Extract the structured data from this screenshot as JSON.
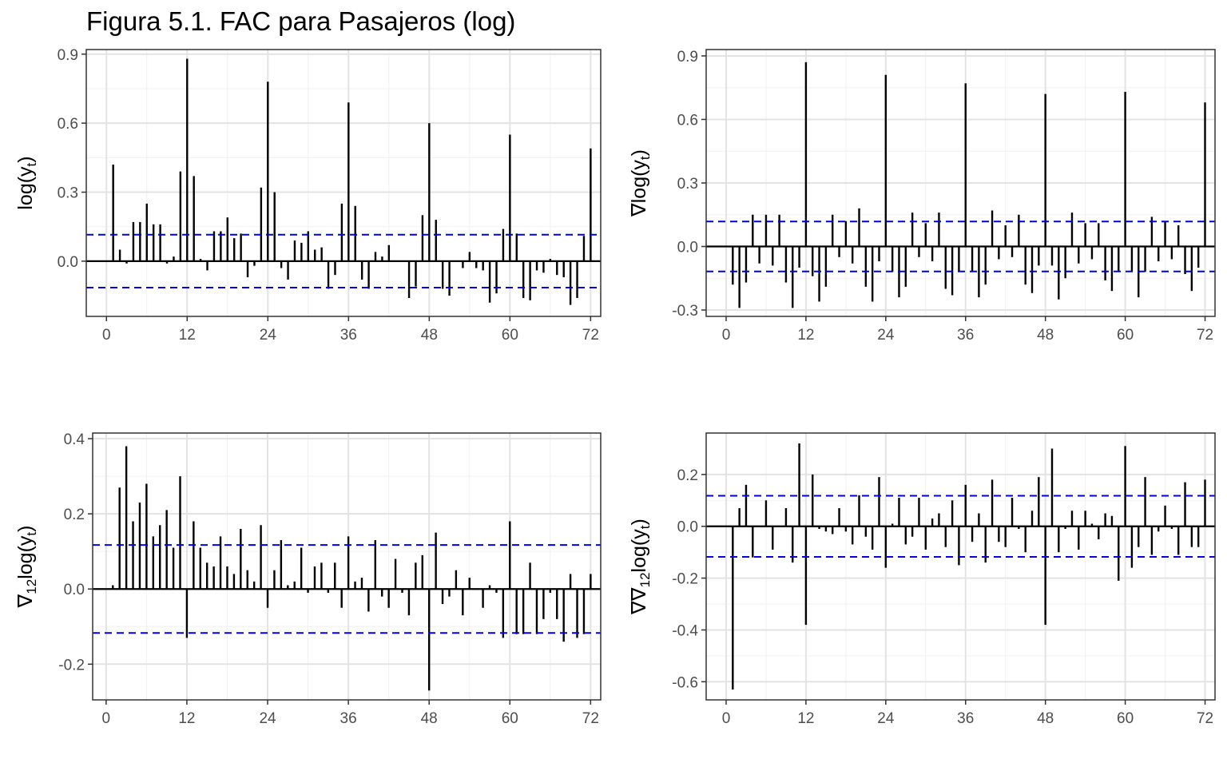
{
  "figure": {
    "title": "Figura 5.1. FAC para Pasajeros (log)"
  },
  "chart_data": [
    {
      "type": "bar",
      "ylabel": "log(y_t)",
      "ylabel_parts": [
        "log(y",
        "t",
        ")"
      ],
      "xlim": [
        -3,
        73.5
      ],
      "ylim": [
        -0.24,
        0.92
      ],
      "xticks": [
        0,
        12,
        24,
        36,
        48,
        60,
        72
      ],
      "yticks": [
        -0.0,
        0.3,
        0.6,
        0.9
      ],
      "ytick_labels": [
        "0.0",
        "0.3",
        "0.6",
        "0.9"
      ],
      "conf_limit": 0.115,
      "x": [
        1,
        2,
        3,
        4,
        5,
        6,
        7,
        8,
        9,
        10,
        11,
        12,
        13,
        14,
        15,
        16,
        17,
        18,
        19,
        20,
        21,
        22,
        23,
        24,
        25,
        26,
        27,
        28,
        29,
        30,
        31,
        32,
        33,
        34,
        35,
        36,
        37,
        38,
        39,
        40,
        41,
        42,
        43,
        44,
        45,
        46,
        47,
        48,
        49,
        50,
        51,
        52,
        53,
        54,
        55,
        56,
        57,
        58,
        59,
        60,
        61,
        62,
        63,
        64,
        65,
        66,
        67,
        68,
        69,
        70,
        71,
        72
      ],
      "values": [
        0.42,
        0.05,
        -0.01,
        0.17,
        0.17,
        0.25,
        0.16,
        0.16,
        -0.01,
        0.02,
        0.39,
        0.88,
        0.37,
        0.01,
        -0.04,
        0.13,
        0.13,
        0.19,
        0.1,
        0.12,
        -0.07,
        -0.02,
        0.32,
        0.78,
        0.3,
        -0.03,
        -0.08,
        0.09,
        0.08,
        0.13,
        0.05,
        0.06,
        -0.12,
        -0.06,
        0.25,
        0.69,
        0.24,
        -0.08,
        -0.12,
        0.04,
        0.02,
        0.07,
        0.0,
        0.0,
        -0.16,
        -0.11,
        0.2,
        0.6,
        0.18,
        -0.12,
        -0.15,
        0.0,
        -0.03,
        0.04,
        -0.03,
        -0.04,
        -0.18,
        -0.14,
        0.14,
        0.55,
        0.12,
        -0.16,
        -0.17,
        -0.04,
        -0.05,
        0.01,
        -0.06,
        -0.07,
        -0.19,
        -0.16,
        0.11,
        0.49
      ]
    },
    {
      "type": "bar",
      "ylabel": "∇log(y_t)",
      "ylabel_parts": [
        "∇log(y",
        "t",
        ")"
      ],
      "xlim": [
        -3,
        73.5
      ],
      "ylim": [
        -0.33,
        0.93
      ],
      "xticks": [
        0,
        12,
        24,
        36,
        48,
        60,
        72
      ],
      "yticks": [
        -0.3,
        0.0,
        0.3,
        0.6,
        0.9
      ],
      "ytick_labels": [
        "-0.3",
        "0.0",
        "0.3",
        "0.6",
        "0.9"
      ],
      "conf_limit": 0.118,
      "x": [
        1,
        2,
        3,
        4,
        5,
        6,
        7,
        8,
        9,
        10,
        11,
        12,
        13,
        14,
        15,
        16,
        17,
        18,
        19,
        20,
        21,
        22,
        23,
        24,
        25,
        26,
        27,
        28,
        29,
        30,
        31,
        32,
        33,
        34,
        35,
        36,
        37,
        38,
        39,
        40,
        41,
        42,
        43,
        44,
        45,
        46,
        47,
        48,
        49,
        50,
        51,
        52,
        53,
        54,
        55,
        56,
        57,
        58,
        59,
        60,
        61,
        62,
        63,
        64,
        65,
        66,
        67,
        68,
        69,
        70,
        71,
        72
      ],
      "values": [
        -0.18,
        -0.29,
        -0.17,
        0.15,
        -0.08,
        0.15,
        -0.09,
        0.15,
        -0.17,
        -0.29,
        -0.1,
        0.87,
        -0.14,
        -0.26,
        -0.19,
        0.15,
        -0.05,
        0.12,
        -0.08,
        0.18,
        -0.19,
        -0.26,
        -0.07,
        0.81,
        -0.12,
        -0.24,
        -0.19,
        0.16,
        -0.05,
        0.11,
        -0.07,
        0.16,
        -0.2,
        -0.23,
        -0.12,
        0.77,
        -0.12,
        -0.24,
        -0.18,
        0.17,
        -0.06,
        0.1,
        -0.05,
        0.15,
        -0.18,
        -0.22,
        -0.09,
        0.72,
        -0.09,
        -0.25,
        -0.15,
        0.16,
        -0.08,
        0.11,
        -0.06,
        0.11,
        -0.16,
        -0.21,
        -0.12,
        0.73,
        -0.12,
        -0.24,
        -0.12,
        0.14,
        -0.07,
        0.12,
        -0.06,
        0.1,
        -0.13,
        -0.21,
        -0.1,
        0.68
      ]
    },
    {
      "type": "bar",
      "ylabel": "∇12log(y_t)",
      "ylabel_parts": [
        "∇",
        "12",
        "log(y",
        "t",
        ")"
      ],
      "xlim": [
        -2,
        73.5
      ],
      "ylim": [
        -0.295,
        0.415
      ],
      "xticks": [
        0,
        12,
        24,
        36,
        48,
        60,
        72
      ],
      "yticks": [
        -0.2,
        0.0,
        0.2,
        0.4
      ],
      "ytick_labels": [
        "-0.2",
        "0.0",
        "0.2",
        "0.4"
      ],
      "conf_limit": 0.117,
      "x": [
        1,
        2,
        3,
        4,
        5,
        6,
        7,
        8,
        9,
        10,
        11,
        12,
        13,
        14,
        15,
        16,
        17,
        18,
        19,
        20,
        21,
        22,
        23,
        24,
        25,
        26,
        27,
        28,
        29,
        30,
        31,
        32,
        33,
        34,
        35,
        36,
        37,
        38,
        39,
        40,
        41,
        42,
        43,
        44,
        45,
        46,
        47,
        48,
        49,
        50,
        51,
        52,
        53,
        54,
        55,
        56,
        57,
        58,
        59,
        60,
        61,
        62,
        63,
        64,
        65,
        66,
        67,
        68,
        69,
        70,
        71,
        72
      ],
      "values": [
        0.01,
        0.27,
        0.38,
        0.18,
        0.23,
        0.28,
        0.14,
        0.17,
        0.21,
        0.11,
        0.3,
        -0.13,
        0.18,
        0.11,
        0.07,
        0.06,
        0.14,
        0.06,
        0.04,
        0.16,
        0.05,
        0.02,
        0.17,
        -0.05,
        0.05,
        0.13,
        0.01,
        0.02,
        0.11,
        -0.01,
        0.06,
        0.07,
        -0.01,
        0.07,
        -0.05,
        0.14,
        0.02,
        0.03,
        -0.06,
        0.13,
        -0.02,
        -0.05,
        0.08,
        -0.01,
        -0.07,
        0.07,
        0.09,
        -0.27,
        0.15,
        -0.04,
        -0.02,
        0.05,
        -0.07,
        0.03,
        0.0,
        -0.05,
        0.01,
        -0.01,
        -0.13,
        0.18,
        -0.12,
        -0.12,
        0.07,
        -0.12,
        -0.08,
        -0.01,
        -0.08,
        -0.14,
        0.04,
        -0.13,
        -0.12,
        0.04
      ]
    },
    {
      "type": "bar",
      "ylabel": "∇∇12log(y_t)",
      "ylabel_parts": [
        "∇∇",
        "12",
        "log(y",
        "t",
        ")"
      ],
      "xlim": [
        -3,
        73.5
      ],
      "ylim": [
        -0.67,
        0.36
      ],
      "xticks": [
        0,
        12,
        24,
        36,
        48,
        60,
        72
      ],
      "yticks": [
        -0.6,
        -0.4,
        -0.2,
        0.0,
        0.2
      ],
      "ytick_labels": [
        "-0.6",
        "-0.4",
        "-0.2",
        "0.0",
        "0.2"
      ],
      "conf_limit": 0.118,
      "x": [
        1,
        2,
        3,
        4,
        5,
        6,
        7,
        8,
        9,
        10,
        11,
        12,
        13,
        14,
        15,
        16,
        17,
        18,
        19,
        20,
        21,
        22,
        23,
        24,
        25,
        26,
        27,
        28,
        29,
        30,
        31,
        32,
        33,
        34,
        35,
        36,
        37,
        38,
        39,
        40,
        41,
        42,
        43,
        44,
        45,
        46,
        47,
        48,
        49,
        50,
        51,
        52,
        53,
        54,
        55,
        56,
        57,
        58,
        59,
        60,
        61,
        62,
        63,
        64,
        65,
        66,
        67,
        68,
        69,
        70,
        71,
        72
      ],
      "values": [
        -0.63,
        0.07,
        0.16,
        -0.12,
        0.0,
        0.1,
        -0.09,
        0.0,
        0.07,
        -0.14,
        0.32,
        -0.38,
        0.2,
        -0.01,
        -0.02,
        -0.03,
        0.07,
        -0.02,
        -0.07,
        0.12,
        -0.04,
        -0.09,
        0.19,
        -0.16,
        0.01,
        0.11,
        -0.07,
        -0.04,
        0.11,
        -0.09,
        0.03,
        0.05,
        -0.08,
        0.1,
        -0.15,
        0.16,
        -0.06,
        0.05,
        -0.14,
        0.18,
        -0.06,
        -0.08,
        0.11,
        -0.01,
        -0.1,
        0.06,
        0.19,
        -0.38,
        0.3,
        -0.1,
        -0.01,
        0.06,
        -0.09,
        0.06,
        0.01,
        -0.05,
        0.05,
        0.04,
        -0.21,
        0.31,
        -0.16,
        -0.08,
        0.19,
        -0.11,
        -0.02,
        0.08,
        -0.01,
        -0.11,
        0.17,
        -0.08,
        -0.08,
        0.18
      ]
    }
  ]
}
